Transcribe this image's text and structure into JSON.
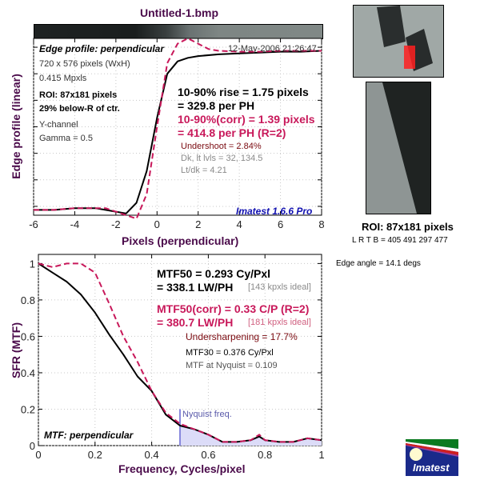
{
  "window_title": "Untitled-1.bmp",
  "edge_panel": {
    "label": "Edge profile: perpendicular",
    "timestamp": "12-May-2006 21:26:47",
    "info_lines": [
      "720 x 576 pixels (WxH)",
      "0.415 Mpxls"
    ],
    "roi_lines": [
      "ROI: 87x181 pixels",
      "29% below-R of ctr."
    ],
    "channel_lines": [
      "Y-channel",
      "Gamma = 0.5"
    ],
    "rise_lines": [
      "10-90% rise = 1.75 pixels",
      "= 329.8 per PH"
    ],
    "corr_lines": [
      "10-90%(corr) = 1.39 pixels",
      "= 414.8 per PH  (R=2)"
    ],
    "undershoot": "Undershoot = 2.84%",
    "levels": "Dk, lt lvls = 32, 134.5",
    "ratio": "Lt/dk = 4.21",
    "version": "Imatest 1.6.6 Pro"
  },
  "mtf_panel": {
    "label": "MTF: perpendicular",
    "mtf50_lines": [
      "MTF50 = 0.293 Cy/Pxl",
      "= 338.1 LW/PH"
    ],
    "mtf50_ideal": "[143 kpxls ideal]",
    "mtf50corr_lines": [
      "MTF50(corr) = 0.33 C/P  (R=2)",
      "= 380.7 LW/PH"
    ],
    "mtf50corr_ideal": "[181 kpxls ideal]",
    "undersharpening": "Undersharpening = 17.7%",
    "mtf30": "MTF30 = 0.376 Cy/Pxl",
    "nyquist_mtf": "MTF at Nyquist = 0.109",
    "nyquist_label": "Nyquist freq."
  },
  "roi": {
    "title": "ROI: 87x181 pixels",
    "coords": "L R  T B = 405 491   297 477",
    "edge_angle": "Edge angle = 14.1 degs"
  },
  "logo": {
    "text": "Imatest"
  },
  "colors": {
    "black_curve": "#000000",
    "corr_curve": "#c8185a",
    "nyquist": "#8888dd",
    "axis_label": "#4a0a4a"
  },
  "chart_data": [
    {
      "type": "line",
      "title": "Edge profile: perpendicular",
      "xlabel": "Pixels (perpendicular)",
      "ylabel": "Edge profile (linear)",
      "xlim": [
        -6,
        8
      ],
      "ylim": [
        0,
        1
      ],
      "xticks": [
        "-6",
        "-4",
        "-2",
        "0",
        "2",
        "4",
        "6",
        "8"
      ],
      "grid": true,
      "series": [
        {
          "name": "edge",
          "style": "solid",
          "x": [
            -6,
            -5,
            -4,
            -3,
            -2.5,
            -2,
            -1.5,
            -1,
            -0.5,
            0,
            0.5,
            1,
            1.5,
            2,
            3,
            4,
            5,
            6,
            7,
            8
          ],
          "y": [
            0.03,
            0.03,
            0.04,
            0.04,
            0.03,
            0.02,
            0.01,
            0.07,
            0.25,
            0.55,
            0.8,
            0.87,
            0.89,
            0.9,
            0.91,
            0.915,
            0.92,
            0.925,
            0.925,
            0.93
          ]
        },
        {
          "name": "edge (corr)",
          "style": "dashed",
          "x": [
            -6,
            -5,
            -4,
            -3,
            -2.5,
            -2,
            -1.5,
            -1,
            -0.5,
            0,
            0.5,
            1,
            1.5,
            2,
            2.5,
            3,
            4,
            5,
            6,
            7,
            8
          ],
          "y": [
            0.03,
            0.03,
            0.04,
            0.04,
            0.04,
            0.02,
            0.0,
            -0.02,
            0.12,
            0.5,
            0.86,
            0.97,
            1.0,
            0.97,
            0.94,
            0.93,
            0.925,
            0.925,
            0.93,
            0.93,
            0.93
          ]
        }
      ]
    },
    {
      "type": "line",
      "title": "MTF: perpendicular",
      "xlabel": "Frequency, Cycles/pixel",
      "ylabel": "SFR (MTF)",
      "xlim": [
        0,
        1
      ],
      "ylim": [
        0,
        1.05
      ],
      "xticks": [
        "0",
        "0.2",
        "0.4",
        "0.6",
        "0.8",
        "1"
      ],
      "yticks": [
        "0",
        "0.2",
        "0.4",
        "0.6",
        "0.8",
        "1"
      ],
      "grid": true,
      "nyquist": 0.5,
      "series": [
        {
          "name": "MTF",
          "style": "solid",
          "x": [
            0,
            0.05,
            0.1,
            0.15,
            0.2,
            0.25,
            0.3,
            0.35,
            0.4,
            0.45,
            0.5,
            0.55,
            0.6,
            0.65,
            0.7,
            0.75,
            0.78,
            0.8,
            0.85,
            0.9,
            0.95,
            1.0
          ],
          "y": [
            1.0,
            0.95,
            0.9,
            0.83,
            0.73,
            0.61,
            0.5,
            0.38,
            0.3,
            0.17,
            0.11,
            0.09,
            0.06,
            0.02,
            0.02,
            0.03,
            0.05,
            0.03,
            0.02,
            0.02,
            0.04,
            0.03
          ]
        },
        {
          "name": "MTF (corr)",
          "style": "dashed",
          "x": [
            0,
            0.05,
            0.1,
            0.15,
            0.2,
            0.25,
            0.3,
            0.35,
            0.4,
            0.45,
            0.5,
            0.55,
            0.6,
            0.65,
            0.7,
            0.75,
            0.78,
            0.8,
            0.85,
            0.9,
            0.95,
            1.0
          ],
          "y": [
            1.0,
            0.98,
            1.0,
            1.0,
            0.95,
            0.78,
            0.6,
            0.46,
            0.3,
            0.18,
            0.12,
            0.09,
            0.06,
            0.02,
            0.02,
            0.03,
            0.06,
            0.03,
            0.02,
            0.02,
            0.04,
            0.03
          ]
        }
      ]
    }
  ]
}
